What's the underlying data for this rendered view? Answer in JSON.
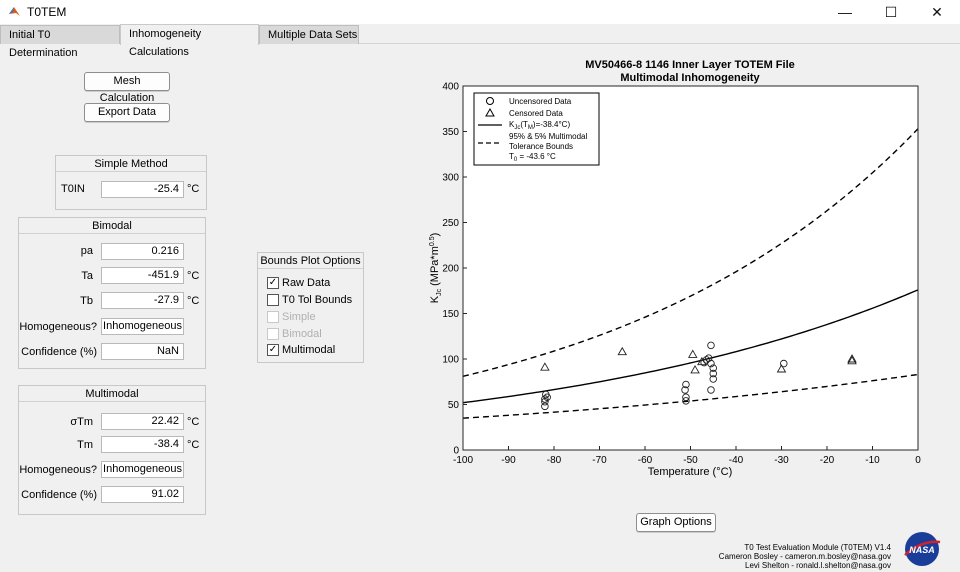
{
  "window": {
    "title": "T0TEM"
  },
  "tabs": [
    {
      "label": "Initial T0 Determination"
    },
    {
      "label": "Inhomogeneity Calculations"
    },
    {
      "label": "Multiple Data Sets"
    }
  ],
  "buttons": {
    "mesh": "Mesh Calculation",
    "export": "Export Data",
    "graph_options": "Graph Options"
  },
  "simple": {
    "title": "Simple Method",
    "t0in_label": "T0IN",
    "t0in_value": "-25.4",
    "unit": "°C"
  },
  "bimodal": {
    "title": "Bimodal",
    "pa_label": "pa",
    "pa_value": "0.216",
    "ta_label": "Ta",
    "ta_value": "-451.9",
    "tb_label": "Tb",
    "tb_value": "-27.9",
    "homog_label": "Homogeneous?",
    "homog_value": "Inhomogeneous",
    "conf_label": "Confidence (%)",
    "conf_value": "NaN",
    "unit": "°C"
  },
  "multimodal": {
    "title": "Multimodal",
    "stm_label": "σTm",
    "stm_value": "22.42",
    "tm_label": "Tm",
    "tm_value": "-38.4",
    "homog_label": "Homogeneous?",
    "homog_value": "Inhomogeneous",
    "conf_label": "Confidence (%)",
    "conf_value": "91.02",
    "unit": "°C"
  },
  "bounds_options": {
    "title": "Bounds Plot Options",
    "items": [
      {
        "label": "Raw Data",
        "checked": true,
        "enabled": true
      },
      {
        "label": "T0 Tol Bounds",
        "checked": false,
        "enabled": true
      },
      {
        "label": "Simple",
        "checked": false,
        "enabled": false
      },
      {
        "label": "Bimodal",
        "checked": false,
        "enabled": false
      },
      {
        "label": "Multimodal",
        "checked": true,
        "enabled": true
      }
    ]
  },
  "chart_data": {
    "type": "scatter",
    "title": "MV50466-8 1146 Inner Layer TOTEM File",
    "subtitle": "Multimodal Inhomogeneity",
    "xlabel": "Temperature (°C)",
    "ylabel_main": "K",
    "ylabel_sub": "Jc",
    "ylabel_rest": " (MPa*m",
    "ylabel_sup": "0.5",
    "ylabel_end": ")",
    "xlim": [
      -100,
      0
    ],
    "ylim": [
      0,
      400
    ],
    "xticks": [
      -100,
      -90,
      -80,
      -70,
      -60,
      -50,
      -40,
      -30,
      -20,
      -10,
      0
    ],
    "yticks": [
      0,
      50,
      100,
      150,
      200,
      250,
      300,
      350,
      400
    ],
    "grid": false,
    "legend_position": "top-left",
    "legend": {
      "uncensored": "Uncensored Data",
      "censored": "Censored Data",
      "median_pre": "K",
      "median_sub": "Jc",
      "median_mid": "(T",
      "median_sub2": "M",
      "median_end": ")=-38.4°C)",
      "bounds_line1": "95% & 5% Multimodal",
      "bounds_line2": "Tolerance Bounds",
      "t0_pre": "T",
      "t0_sub": "0",
      "t0_end": " =   -43.6  °C"
    },
    "uncensored": [
      [
        -82,
        48
      ],
      [
        -82,
        53
      ],
      [
        -82,
        56
      ],
      [
        -81.5,
        58
      ],
      [
        -81.8,
        61
      ],
      [
        -51,
        54
      ],
      [
        -51,
        58
      ],
      [
        -51.2,
        66
      ],
      [
        -51,
        72
      ],
      [
        -47,
        96
      ],
      [
        -46.5,
        99
      ],
      [
        -46,
        101
      ],
      [
        -45.5,
        115
      ],
      [
        -45.5,
        95
      ],
      [
        -45,
        90
      ],
      [
        -45,
        84
      ],
      [
        -45,
        78
      ],
      [
        -45.5,
        66
      ],
      [
        -29.5,
        95
      ]
    ],
    "censored": [
      [
        -82,
        91
      ],
      [
        -65,
        108
      ],
      [
        -49.5,
        105
      ],
      [
        -49,
        88
      ],
      [
        -47.5,
        97
      ],
      [
        -30,
        89
      ],
      [
        -14.5,
        98
      ],
      [
        -14.5,
        100
      ]
    ],
    "median_curve": {
      "x_from": -100,
      "x_to": 0,
      "y_at_minus100": 52,
      "y_at_0": 176
    },
    "upper_bound": {
      "x_from": -100,
      "x_to": 0,
      "y_at_minus100": 81,
      "y_at_0": 353
    },
    "lower_bound": {
      "x_from": -100,
      "x_to": 0,
      "y_at_minus100": 35,
      "y_at_0": 83
    }
  },
  "footer": {
    "line1": "T0 Test Evaluation Module (T0TEM) V1.4",
    "line2": "Cameron Bosley - cameron.m.bosley@nasa.gov",
    "line3": "Levi Shelton - ronald.l.shelton@nasa.gov",
    "logo_text": "NASA"
  }
}
